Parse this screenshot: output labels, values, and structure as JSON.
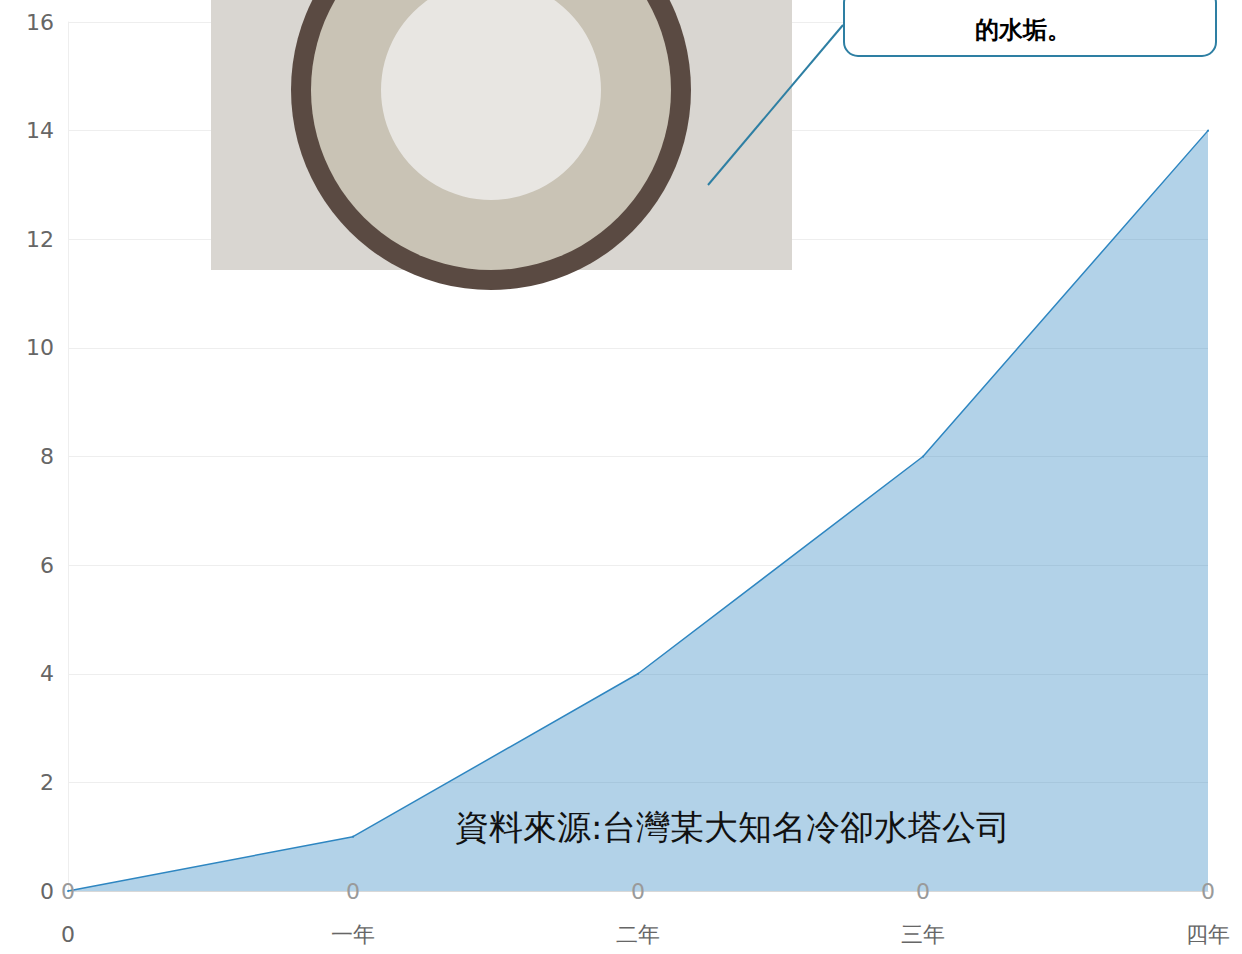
{
  "chart_data": {
    "type": "line",
    "categories": [
      "0",
      "一年",
      "二年",
      "三年",
      "四年"
    ],
    "series": [
      {
        "type": "area",
        "color": "#2e86c1",
        "values": [
          0,
          1,
          4,
          8,
          14
        ]
      },
      {
        "type": "line",
        "color": "#9a9a9a",
        "values": [
          0,
          0,
          0,
          0,
          0
        ],
        "data_labels": true
      }
    ],
    "ylim": [
      0,
      16
    ],
    "yticks": [
      0,
      2,
      4,
      6,
      8,
      10,
      12,
      14,
      16
    ],
    "grid": true,
    "annotations": [
      "資料來源:台灣某大知名冷卻水塔公司",
      "的水垢。"
    ]
  }
}
